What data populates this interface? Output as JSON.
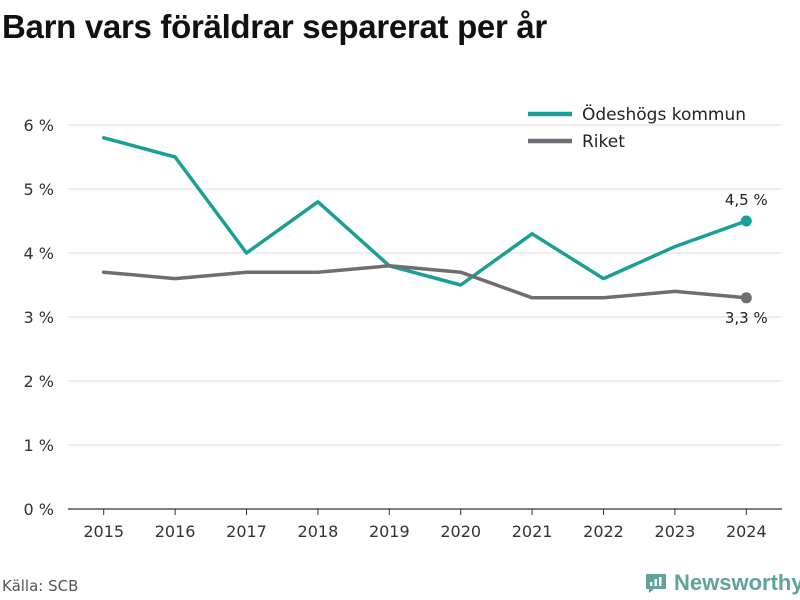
{
  "chart_data": {
    "type": "line",
    "title": "Barn vars föräldrar separerat per år",
    "x": [
      "2015",
      "2016",
      "2017",
      "2018",
      "2019",
      "2020",
      "2021",
      "2022",
      "2023",
      "2024"
    ],
    "y_ticks": [
      "0 %",
      "1 %",
      "2 %",
      "3 %",
      "4 %",
      "5 %",
      "6 %"
    ],
    "ylim": [
      0,
      6
    ],
    "grid": true,
    "legend_position": "top-right",
    "series": [
      {
        "name": "Ödeshögs kommun",
        "color": "#1a9f97",
        "values": [
          5.8,
          5.5,
          4.0,
          4.8,
          3.8,
          3.5,
          4.3,
          3.6,
          4.1,
          4.5
        ],
        "end_label": "4,5 %"
      },
      {
        "name": "Riket",
        "color": "#6e6d73",
        "values": [
          3.7,
          3.6,
          3.7,
          3.7,
          3.8,
          3.7,
          3.3,
          3.3,
          3.4,
          3.3
        ],
        "end_label": "3,3 %"
      }
    ]
  },
  "footer": {
    "source": "Källa: SCB",
    "brand": "Newsworthy",
    "brand_icon": "newsworthy-logo-icon",
    "brand_color": "#5fa39a"
  }
}
